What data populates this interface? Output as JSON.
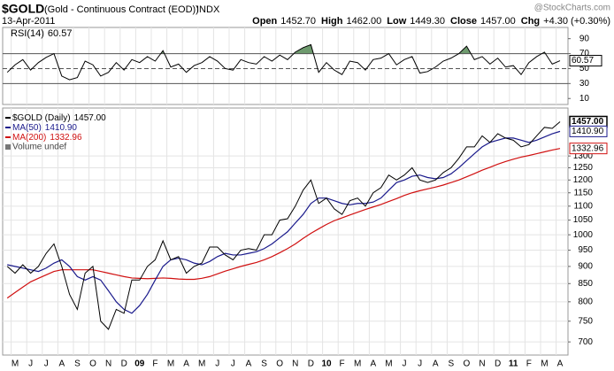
{
  "header": {
    "symbol": "$GOLD",
    "name": "(Gold - Continuous Contract (EOD))",
    "exchange": "INDX",
    "date": "13-Apr-2011",
    "source": "@StockCharts.com",
    "quote": [
      {
        "label": "Open",
        "value": "1452.70"
      },
      {
        "label": "High",
        "value": "1462.00"
      },
      {
        "label": "Low",
        "value": "1449.30"
      },
      {
        "label": "Close",
        "value": "1457.00"
      },
      {
        "label": "Chg",
        "value": "+4.30 (+0.30%)"
      }
    ]
  },
  "chart_data": [
    {
      "type": "line",
      "title": "RSI(14)",
      "last_label": "60.57",
      "color": "#000000",
      "fill_above": "#6e9a6e",
      "ylim": [
        2,
        105
      ],
      "yticks": [
        10,
        30,
        50,
        70,
        90
      ],
      "levels": [
        {
          "value": 70,
          "dash": false
        },
        {
          "value": 50,
          "dash": true
        },
        {
          "value": 30,
          "dash": false
        }
      ],
      "values": [
        45,
        55,
        62,
        48,
        58,
        65,
        70,
        40,
        35,
        38,
        60,
        55,
        40,
        45,
        58,
        48,
        62,
        58,
        66,
        60,
        74,
        52,
        56,
        45,
        54,
        58,
        66,
        60,
        50,
        48,
        62,
        58,
        56,
        66,
        60,
        68,
        62,
        72,
        78,
        82,
        45,
        58,
        48,
        42,
        60,
        58,
        48,
        62,
        64,
        70,
        55,
        62,
        66,
        44,
        46,
        52,
        60,
        64,
        70,
        80,
        62,
        66,
        56,
        64,
        52,
        54,
        42,
        58,
        66,
        72,
        56,
        60.57
      ]
    },
    {
      "type": "line",
      "log": true,
      "grid": true,
      "ylim": [
        670,
        1525
      ],
      "yticks": [
        700,
        750,
        800,
        850,
        900,
        950,
        1000,
        1050,
        1100,
        1150,
        1200,
        1250,
        1300
      ],
      "legend_extra": "Volume undef",
      "categories": [
        null,
        "M",
        null,
        "J",
        null,
        "J",
        null,
        "A",
        null,
        "S",
        null,
        "O",
        null,
        "N",
        null,
        "D",
        null,
        "09",
        null,
        "F",
        null,
        "M",
        null,
        "A",
        null,
        "M",
        null,
        "J",
        null,
        "J",
        null,
        "A",
        null,
        "S",
        null,
        "O",
        null,
        "N",
        null,
        "D",
        null,
        "10",
        null,
        "F",
        null,
        "M",
        null,
        "A",
        null,
        "M",
        null,
        "J",
        null,
        "J",
        null,
        "A",
        null,
        "S",
        null,
        "O",
        null,
        "N",
        null,
        "D",
        null,
        "11",
        null,
        "F",
        null,
        "M",
        null,
        "A"
      ],
      "series": [
        {
          "name": "$GOLD (Daily)",
          "last_label": "1457.00",
          "color": "#000000",
          "values": [
            900,
            880,
            905,
            880,
            900,
            940,
            970,
            900,
            820,
            780,
            880,
            900,
            750,
            730,
            780,
            770,
            860,
            860,
            900,
            920,
            980,
            920,
            930,
            880,
            900,
            910,
            960,
            960,
            935,
            920,
            950,
            955,
            950,
            1000,
            1000,
            1050,
            1055,
            1100,
            1160,
            1200,
            1110,
            1130,
            1090,
            1070,
            1120,
            1130,
            1100,
            1150,
            1170,
            1220,
            1200,
            1220,
            1250,
            1200,
            1190,
            1200,
            1230,
            1250,
            1290,
            1340,
            1340,
            1390,
            1360,
            1400,
            1380,
            1370,
            1340,
            1350,
            1390,
            1430,
            1425,
            1457
          ]
        },
        {
          "name": "MA(50)",
          "last_label": "1410.90",
          "color": "#1a1a8c",
          "values": [
            905,
            900,
            895,
            890,
            885,
            895,
            910,
            920,
            900,
            870,
            860,
            870,
            860,
            830,
            800,
            780,
            770,
            790,
            820,
            860,
            900,
            920,
            925,
            920,
            910,
            905,
            915,
            930,
            940,
            935,
            935,
            940,
            945,
            955,
            970,
            990,
            1010,
            1040,
            1070,
            1110,
            1130,
            1130,
            1120,
            1110,
            1105,
            1110,
            1110,
            1115,
            1130,
            1160,
            1190,
            1200,
            1215,
            1220,
            1210,
            1205,
            1210,
            1225,
            1250,
            1280,
            1310,
            1340,
            1360,
            1370,
            1380,
            1380,
            1370,
            1360,
            1370,
            1385,
            1400,
            1410.9
          ]
        },
        {
          "name": "MA(200)",
          "last_label": "1332.96",
          "color": "#d01010",
          "values": [
            810,
            825,
            840,
            855,
            865,
            875,
            885,
            890,
            890,
            890,
            890,
            890,
            885,
            880,
            875,
            870,
            866,
            865,
            864,
            865,
            866,
            865,
            863,
            862,
            862,
            865,
            870,
            878,
            886,
            893,
            900,
            906,
            912,
            920,
            930,
            942,
            955,
            970,
            988,
            1005,
            1020,
            1035,
            1048,
            1058,
            1068,
            1078,
            1088,
            1097,
            1106,
            1117,
            1128,
            1140,
            1150,
            1158,
            1165,
            1172,
            1180,
            1190,
            1200,
            1213,
            1226,
            1240,
            1252,
            1265,
            1276,
            1286,
            1295,
            1302,
            1310,
            1318,
            1326,
            1332.96
          ]
        }
      ]
    }
  ]
}
